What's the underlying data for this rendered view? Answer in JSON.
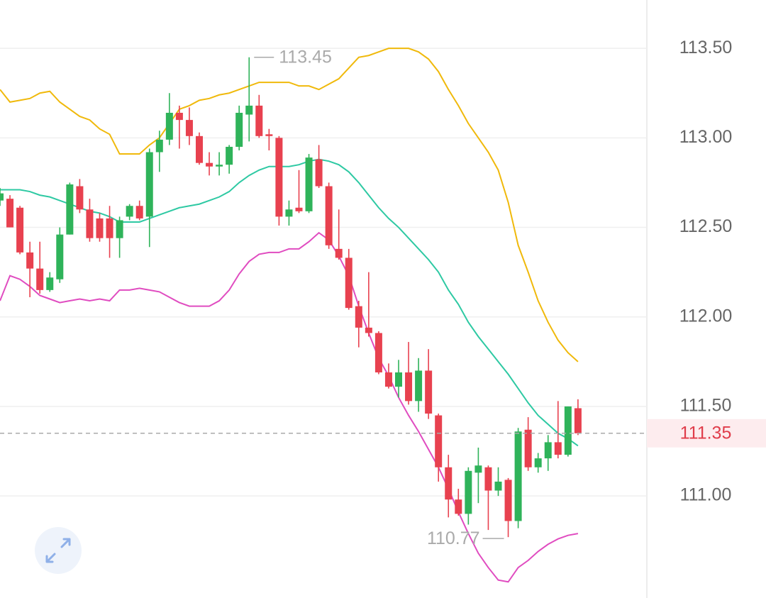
{
  "chart_data": {
    "type": "candlestick",
    "ylim": [
      110.43,
      113.77
    ],
    "yticks": [
      {
        "value": 111,
        "label": "111.00"
      },
      {
        "value": 111.5,
        "label": "111.50"
      },
      {
        "value": 112,
        "label": "112.00"
      },
      {
        "value": 112.5,
        "label": "112.50"
      },
      {
        "value": 113,
        "label": "113.00"
      },
      {
        "value": 113.5,
        "label": "113.50"
      }
    ],
    "grid": true,
    "up_color": "#2fb35a",
    "down_color": "#e8414f",
    "candles": {
      "open": [
        112.65,
        112.66,
        112.61,
        112.36,
        112.27,
        112.15,
        112.21,
        112.46,
        112.73,
        112.6,
        112.55,
        112.55,
        112.44,
        112.56,
        112.62,
        112.56,
        112.92,
        112.99,
        113.14,
        113.1,
        113.01,
        112.86,
        112.84,
        112.85,
        112.95,
        113.13,
        113.18,
        113.02,
        113.0,
        112.56,
        112.61,
        112.59,
        112.88,
        112.73,
        112.38,
        112.33,
        112.06,
        111.94,
        111.91,
        111.69,
        111.61,
        111.69,
        111.53,
        111.7,
        111.45,
        111.16,
        110.98,
        110.9,
        111.13,
        111.16,
        111.03,
        111.09,
        110.86,
        111.37,
        111.16,
        111.21,
        111.3,
        111.23,
        111.49
      ],
      "high": [
        112.72,
        112.68,
        112.62,
        112.42,
        112.42,
        112.25,
        112.5,
        112.75,
        112.77,
        112.66,
        112.58,
        112.62,
        112.56,
        112.63,
        112.65,
        112.94,
        113.04,
        113.25,
        113.18,
        113.17,
        113.03,
        112.92,
        112.92,
        112.96,
        113.18,
        113.45,
        113.24,
        113.05,
        113.01,
        112.65,
        112.82,
        112.91,
        112.96,
        112.75,
        112.6,
        112.38,
        112.09,
        112.25,
        111.92,
        111.74,
        111.76,
        111.86,
        111.77,
        111.82,
        111.46,
        111.23,
        111.04,
        111.16,
        111.27,
        111.17,
        111.16,
        111.1,
        111.38,
        111.44,
        111.24,
        111.34,
        111.53,
        111.5,
        111.54
      ],
      "low": [
        112.62,
        112.5,
        112.35,
        112.11,
        112.13,
        112.14,
        112.19,
        112.46,
        112.58,
        112.42,
        112.42,
        112.33,
        112.33,
        112.54,
        112.54,
        112.39,
        112.81,
        112.96,
        112.94,
        112.96,
        112.85,
        112.79,
        112.79,
        112.8,
        112.93,
        112.98,
        113.0,
        112.93,
        112.51,
        112.51,
        112.58,
        112.58,
        112.72,
        112.38,
        112.32,
        112.04,
        111.83,
        111.89,
        111.68,
        111.6,
        111.55,
        111.51,
        111.47,
        111.43,
        111.08,
        110.88,
        110.89,
        110.84,
        110.96,
        110.81,
        111.0,
        110.77,
        110.82,
        111.14,
        111.13,
        111.14,
        111.21,
        111.22,
        111.34
      ],
      "close": [
        112.69,
        112.5,
        112.36,
        112.27,
        112.15,
        112.22,
        112.46,
        112.74,
        112.6,
        112.44,
        112.44,
        112.44,
        112.54,
        112.62,
        112.55,
        112.92,
        112.99,
        113.14,
        113.1,
        113.01,
        112.86,
        112.84,
        112.85,
        112.95,
        113.14,
        113.18,
        113.01,
        113.01,
        112.56,
        112.6,
        112.59,
        112.89,
        112.73,
        112.4,
        112.33,
        112.05,
        111.94,
        111.91,
        111.69,
        111.61,
        111.69,
        111.53,
        111.7,
        111.46,
        111.16,
        110.98,
        110.9,
        111.14,
        111.17,
        111.03,
        111.08,
        110.86,
        111.36,
        111.16,
        111.21,
        111.3,
        111.23,
        111.5,
        111.35
      ]
    },
    "series": [
      {
        "color": "#f0b90b",
        "values": [
          113.27,
          113.2,
          113.21,
          113.22,
          113.25,
          113.26,
          113.2,
          113.16,
          113.12,
          113.1,
          113.05,
          113.02,
          112.91,
          112.91,
          112.91,
          112.96,
          113.0,
          113.08,
          113.16,
          113.18,
          113.21,
          113.22,
          113.24,
          113.25,
          113.27,
          113.29,
          113.31,
          113.31,
          113.31,
          113.31,
          113.29,
          113.29,
          113.27,
          113.3,
          113.33,
          113.39,
          113.45,
          113.46,
          113.48,
          113.5,
          113.5,
          113.5,
          113.48,
          113.44,
          113.37,
          113.27,
          113.18,
          113.08,
          113.0,
          112.92,
          112.82,
          112.64,
          112.4,
          112.25,
          112.09,
          111.97,
          111.87,
          111.8,
          111.75
        ]
      },
      {
        "color": "#2ec9a3",
        "values": [
          112.71,
          112.71,
          112.71,
          112.7,
          112.68,
          112.67,
          112.65,
          112.63,
          112.61,
          112.59,
          112.58,
          112.56,
          112.53,
          112.53,
          112.53,
          112.55,
          112.57,
          112.59,
          112.61,
          112.62,
          112.63,
          112.65,
          112.67,
          112.7,
          112.75,
          112.79,
          112.82,
          112.84,
          112.84,
          112.84,
          112.85,
          112.87,
          112.88,
          112.87,
          112.85,
          112.81,
          112.75,
          112.68,
          112.61,
          112.55,
          112.5,
          112.44,
          112.38,
          112.32,
          112.25,
          112.15,
          112.07,
          111.97,
          111.89,
          111.82,
          111.75,
          111.68,
          111.6,
          111.52,
          111.45,
          111.4,
          111.35,
          111.32,
          111.28
        ]
      },
      {
        "color": "#e04cc0",
        "values": [
          112.09,
          112.23,
          112.21,
          112.17,
          112.12,
          112.1,
          112.08,
          112.09,
          112.1,
          112.09,
          112.1,
          112.09,
          112.15,
          112.15,
          112.16,
          112.15,
          112.14,
          112.11,
          112.08,
          112.06,
          112.06,
          112.06,
          112.09,
          112.15,
          112.24,
          112.31,
          112.35,
          112.36,
          112.36,
          112.38,
          112.38,
          112.42,
          112.47,
          112.43,
          112.34,
          112.23,
          112.06,
          111.91,
          111.77,
          111.67,
          111.55,
          111.45,
          111.36,
          111.26,
          111.16,
          111.04,
          110.91,
          110.79,
          110.68,
          110.6,
          110.53,
          110.52,
          110.6,
          110.64,
          110.69,
          110.73,
          110.76,
          110.78,
          110.79
        ]
      }
    ],
    "last_price": 111.35,
    "high_annotation": 113.45,
    "low_annotation": 110.77
  }
}
